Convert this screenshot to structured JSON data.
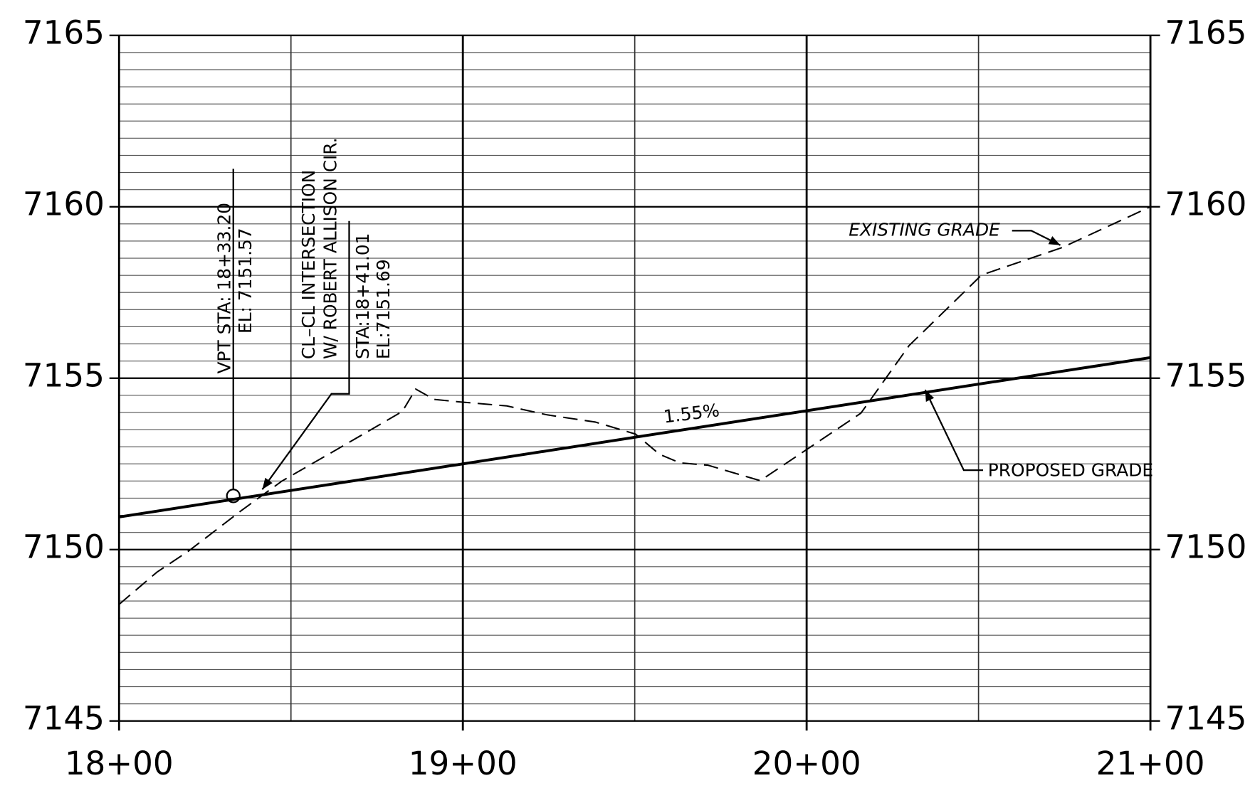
{
  "chart_data": {
    "type": "line",
    "annotations": [
      "VPT STA: 18+33.20",
      "EL:  7151.57",
      "CL–CL INTERSECTION",
      "W/ ROBERT ALLISON CIR.",
      "STA:18+41.01",
      "EL:7151.69",
      "1.55%",
      "EXISTING GRADE",
      "PROPOSED GRADE"
    ],
    "x": [
      1800,
      1811,
      1820.4,
      1835.6,
      1847.4,
      1863.7,
      1882.4,
      1886.3,
      1891.7,
      1898.8,
      1912.8,
      1924.5,
      1938.5,
      1950.2,
      1957.2,
      1963.1,
      1971.3,
      1986.5,
      2015.8,
      2029.8,
      2050.9,
      2074.3,
      2100
    ],
    "series": [
      {
        "color": "#000000",
        "dashed": true,
        "values": [
          7148.4,
          7149.34,
          7149.97,
          7151.14,
          7152.0,
          7152.94,
          7154.03,
          7154.68,
          7154.38,
          7154.31,
          7154.19,
          7153.93,
          7153.72,
          7153.37,
          7152.78,
          7152.53,
          7152.46,
          7152.01,
          7153.98,
          7155.95,
          7158.01,
          7158.81,
          7160.0
        ]
      },
      {
        "color": "#000000",
        "dashed": false,
        "x": [
          1800,
          2100
        ],
        "values": [
          7150.95,
          7155.6
        ]
      }
    ],
    "xlim": [
      1800,
      2100
    ],
    "xticks": [
      {
        "value": 1800,
        "label": "18+00"
      },
      {
        "value": 1900,
        "label": "19+00"
      },
      {
        "value": 2000,
        "label": "20+00"
      },
      {
        "value": 2100,
        "label": "21+00"
      }
    ],
    "ylim": [
      7145,
      7165
    ],
    "yticks": [
      7145,
      7150,
      7155,
      7160,
      7165
    ],
    "y2lim": [
      7145,
      7165
    ],
    "y2ticks": [
      7145,
      7150,
      7155,
      7160,
      7165
    ],
    "grid": true
  }
}
